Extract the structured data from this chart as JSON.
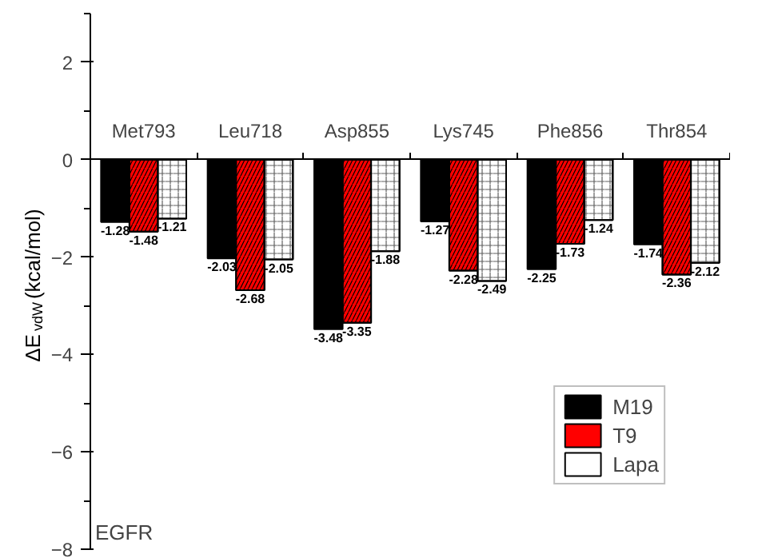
{
  "chart_data": {
    "type": "bar",
    "ylabel": "ΔE$_{vdW}$(kcal/mol)",
    "categories": [
      "Met793",
      "Leu718",
      "Asp855",
      "Lys745",
      "Phe856",
      "Thr854"
    ],
    "series": [
      {
        "name": "M19",
        "color": "#000000",
        "values": [
          -1.28,
          -2.03,
          -3.48,
          -1.27,
          -2.25,
          -1.74
        ]
      },
      {
        "name": "T9",
        "color": "#ff0000",
        "values": [
          -1.48,
          -2.68,
          -3.35,
          -2.28,
          -1.73,
          -2.36
        ]
      },
      {
        "name": "Lapa",
        "color": "#ffffff",
        "values": [
          -1.21,
          -2.05,
          -1.88,
          -2.49,
          -1.24,
          -2.12
        ]
      }
    ],
    "ylim": [
      -8,
      3
    ],
    "yticks": [
      -8,
      -6,
      -4,
      -2,
      0,
      2
    ],
    "data_labels": true,
    "legend": "bottom right",
    "grid": false,
    "annotations": [
      {
        "text": "EGFR"
      }
    ]
  }
}
